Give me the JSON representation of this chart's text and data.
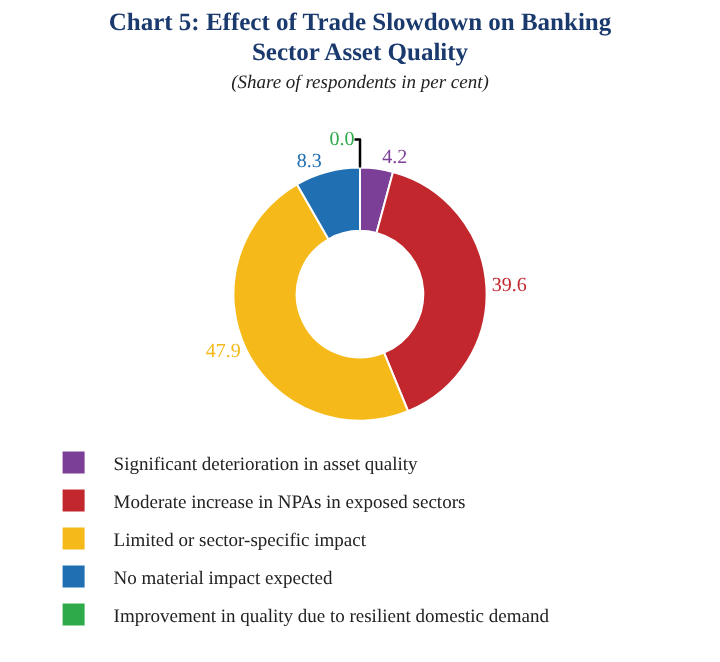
{
  "chart_data": {
    "type": "donut",
    "title": "Chart 5: Effect of Trade Slowdown on Banking Sector Asset Quality",
    "subtitle": "(Share of respondents in per cent)",
    "categories": [
      "Significant deterioration in asset quality",
      "Moderate increase in NPAs in exposed sectors",
      "Limited or sector-specific impact",
      "No material impact expected",
      "Improvement in quality due to resilient domestic demand"
    ],
    "values": [
      4.2,
      39.6,
      47.9,
      8.3,
      0.0
    ],
    "value_labels": [
      "4.2",
      "39.6",
      "47.9",
      "8.3",
      "0.0"
    ],
    "colors": [
      "#7b3f98",
      "#c1272d",
      "#f5b919",
      "#1f6fb2",
      "#2eaa4a"
    ],
    "legend": "bottom"
  }
}
